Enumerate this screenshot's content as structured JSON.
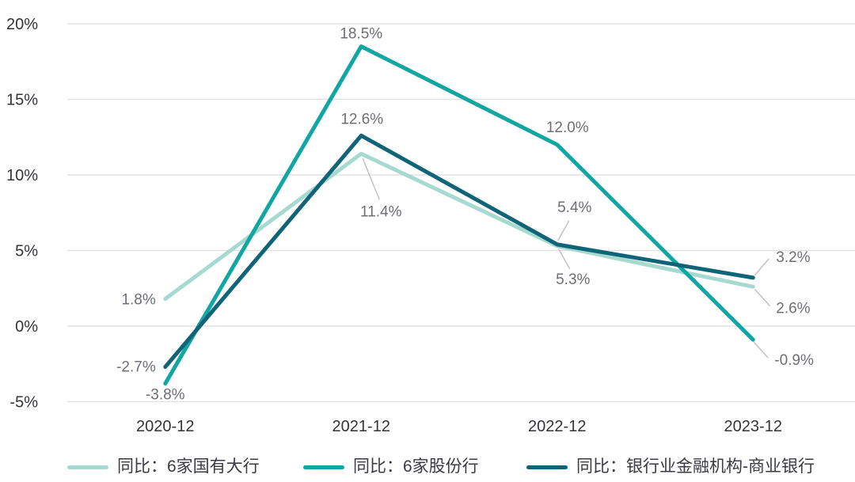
{
  "chart_data": {
    "type": "line",
    "title": "",
    "categories": [
      "2020-12",
      "2021-12",
      "2022-12",
      "2023-12"
    ],
    "series": [
      {
        "name": "同比：6家国有大行",
        "values": [
          1.8,
          11.4,
          5.3,
          2.6
        ],
        "labels": [
          "1.8%",
          "11.4%",
          "5.3%",
          "2.6%"
        ],
        "color": "#A6DAD0"
      },
      {
        "name": "同比：6家股份行",
        "values": [
          -3.8,
          18.5,
          12.0,
          -0.9
        ],
        "labels": [
          "-3.8%",
          "18.5%",
          "12.0%",
          "-0.9%"
        ],
        "color": "#10A6A3"
      },
      {
        "name": "同比：银行业金融机构-商业银行",
        "values": [
          -2.7,
          12.6,
          5.4,
          3.2
        ],
        "labels": [
          "-2.7%",
          "12.6%",
          "5.4%",
          "3.2%"
        ],
        "color": "#0F6478"
      }
    ],
    "y_axis": {
      "min": -5,
      "max": 20,
      "ticks": [
        20,
        15,
        10,
        5,
        0,
        -5
      ],
      "tick_labels": [
        "20%",
        "15%",
        "10%",
        "5%",
        "0%",
        "-5%"
      ]
    },
    "grid": true,
    "legend_position": "bottom",
    "colors": {
      "background": "#FFFFFF",
      "grid": "#E2E2E2",
      "axis_label": "#33333C",
      "data_label": "#6E6E78",
      "legend_text": "#3A3A44",
      "leader_line": "#C2C2C2"
    }
  }
}
